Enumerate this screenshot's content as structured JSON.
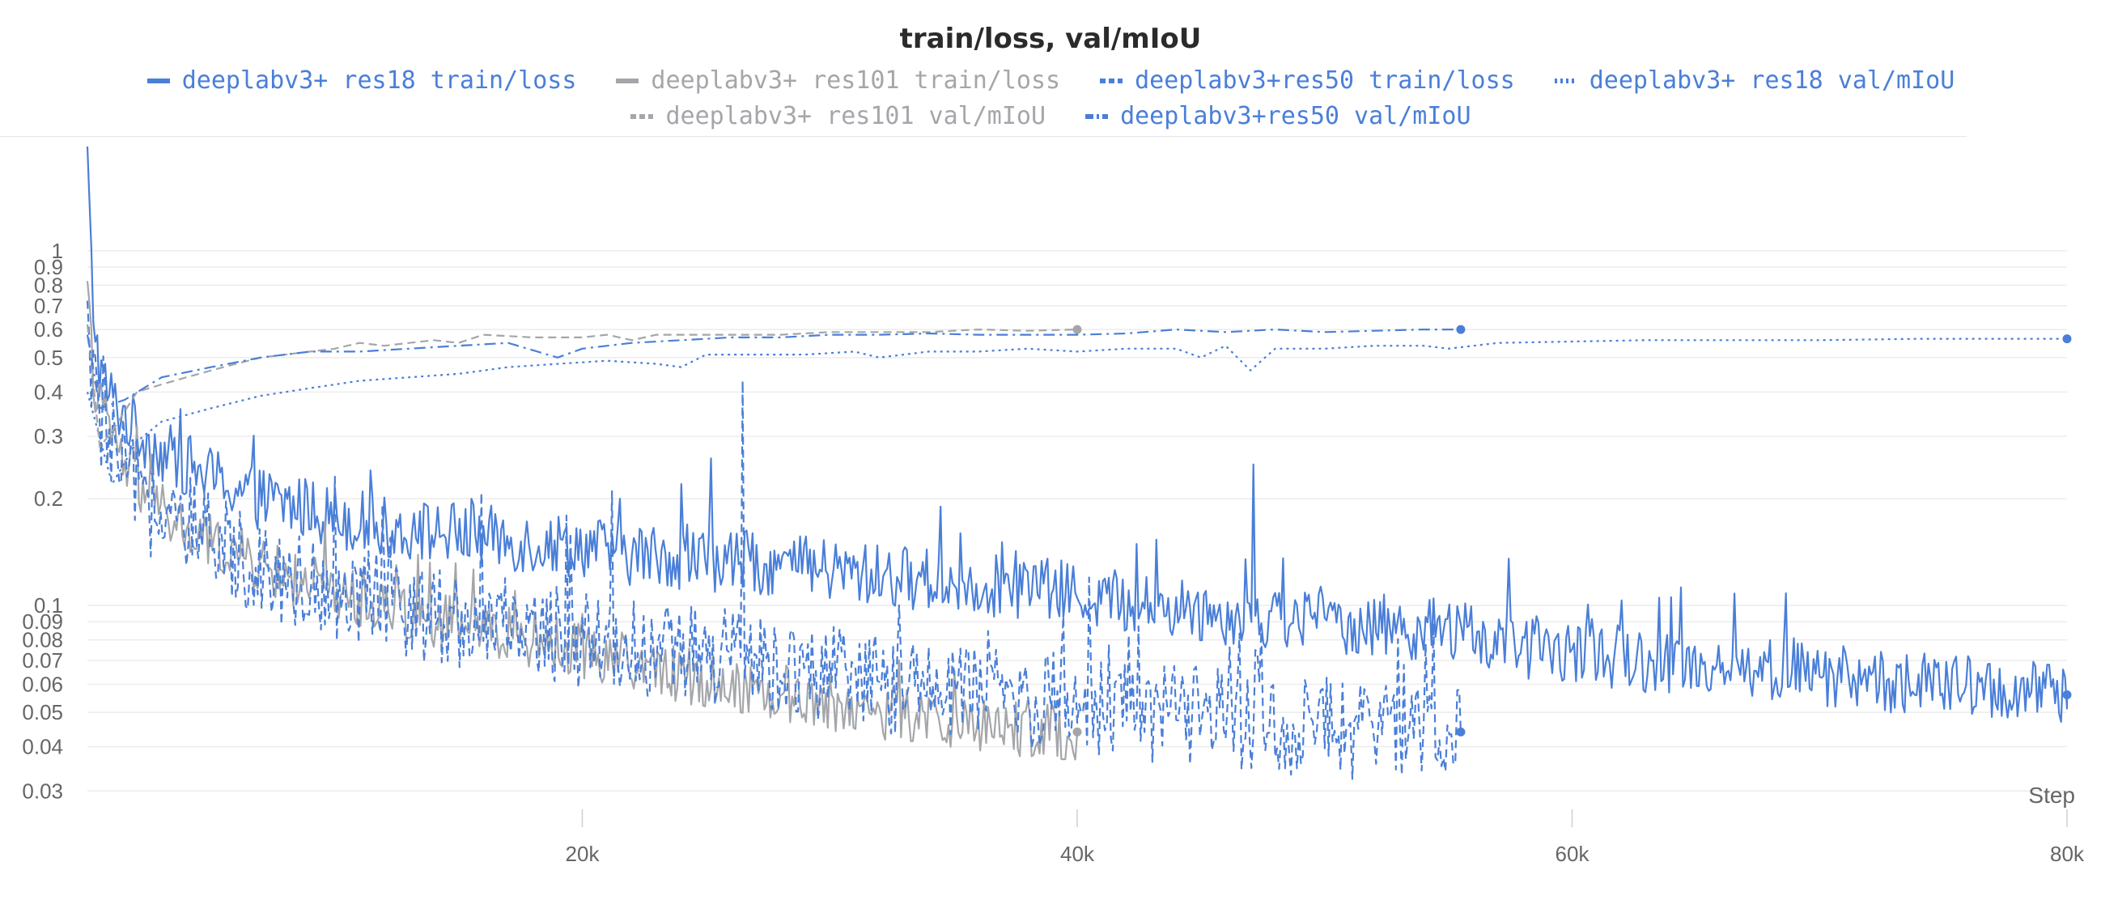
{
  "chart_data": {
    "type": "line",
    "title": "train/loss, val/mIoU",
    "xlabel": "Step",
    "ylabel": "",
    "y_scale": "log",
    "xlim": [
      0,
      80000
    ],
    "ylim": [
      0.025,
      2.0
    ],
    "grid": true,
    "legend_position": "top-center",
    "x_ticks": [
      {
        "value": 20000,
        "label": "20k"
      },
      {
        "value": 40000,
        "label": "40k"
      },
      {
        "value": 60000,
        "label": "60k"
      },
      {
        "value": 80000,
        "label": "80k"
      }
    ],
    "y_ticks": [
      {
        "value": 1,
        "label": "1"
      },
      {
        "value": 0.9,
        "label": "0.9"
      },
      {
        "value": 0.8,
        "label": "0.8"
      },
      {
        "value": 0.7,
        "label": "0.7"
      },
      {
        "value": 0.6,
        "label": "0.6"
      },
      {
        "value": 0.5,
        "label": "0.5"
      },
      {
        "value": 0.4,
        "label": "0.4"
      },
      {
        "value": 0.3,
        "label": "0.3"
      },
      {
        "value": 0.2,
        "label": "0.2"
      },
      {
        "value": 0.1,
        "label": "0.1"
      },
      {
        "value": 0.09,
        "label": "0.09"
      },
      {
        "value": 0.08,
        "label": "0.08"
      },
      {
        "value": 0.07,
        "label": "0.07"
      },
      {
        "value": 0.06,
        "label": "0.06"
      },
      {
        "value": 0.05,
        "label": "0.05"
      },
      {
        "value": 0.04,
        "label": "0.04"
      },
      {
        "value": 0.03,
        "label": "0.03"
      }
    ],
    "series": [
      {
        "name": "deeplabv3+ res18 train/loss",
        "color": "#4a7fd8",
        "dash": "solid",
        "legend_row": 1,
        "x": [
          0,
          200,
          500,
          1000,
          2000,
          3000,
          5000,
          7000,
          10000,
          12000,
          15000,
          18000,
          20000,
          22000,
          25000,
          28000,
          30000,
          33000,
          36000,
          38000,
          40000,
          43000,
          46000,
          48000,
          50000,
          52000,
          55000,
          57000,
          60000,
          63000,
          66000,
          70000,
          73000,
          76000,
          78000,
          80000
        ],
        "y": [
          1.8,
          0.75,
          0.45,
          0.38,
          0.31,
          0.27,
          0.23,
          0.2,
          0.18,
          0.165,
          0.16,
          0.15,
          0.148,
          0.14,
          0.135,
          0.13,
          0.125,
          0.12,
          0.115,
          0.112,
          0.108,
          0.1,
          0.095,
          0.092,
          0.09,
          0.088,
          0.085,
          0.078,
          0.074,
          0.07,
          0.068,
          0.064,
          0.061,
          0.059,
          0.057,
          0.056
        ],
        "noise": 0.09,
        "spikes": [
          {
            "x": 15500,
            "y": 0.2
          },
          {
            "x": 21500,
            "y": 0.2
          },
          {
            "x": 24000,
            "y": 0.22
          },
          {
            "x": 25200,
            "y": 0.26
          },
          {
            "x": 31800,
            "y": 0.32
          },
          {
            "x": 34500,
            "y": 0.19
          },
          {
            "x": 47100,
            "y": 0.25
          },
          {
            "x": 51000,
            "y": 0.18
          },
          {
            "x": 53000,
            "y": 0.15
          }
        ]
      },
      {
        "name": "deeplabv3+ res101 train/loss",
        "color": "#a4a6aa",
        "dash": "solid",
        "legend_row": 1,
        "x": [
          0,
          300,
          700,
          1500,
          2500,
          4000,
          6000,
          8000,
          10000,
          12000,
          15000,
          18000,
          20000,
          23000,
          26000,
          28000,
          30000,
          32000,
          34000,
          36000,
          38000,
          40000
        ],
        "y": [
          0.7,
          0.42,
          0.34,
          0.25,
          0.2,
          0.16,
          0.14,
          0.12,
          0.11,
          0.1,
          0.088,
          0.08,
          0.075,
          0.066,
          0.06,
          0.056,
          0.053,
          0.05,
          0.048,
          0.046,
          0.045,
          0.044
        ],
        "noise": 0.08,
        "spikes": [
          {
            "x": 12500,
            "y": 0.13
          },
          {
            "x": 17300,
            "y": 0.11
          },
          {
            "x": 32800,
            "y": 0.07
          }
        ]
      },
      {
        "name": "deeplabv3+res50 train/loss",
        "color": "#4a7fd8",
        "dash": "dashed",
        "legend_row": 1,
        "x": [
          0,
          300,
          700,
          1500,
          2500,
          4000,
          6000,
          8000,
          10000,
          12000,
          15000,
          18000,
          20000,
          22000,
          25000,
          28000,
          30000,
          32000,
          35000,
          38000,
          40000,
          43000,
          46000,
          48000,
          50000,
          52000,
          54000,
          55500
        ],
        "y": [
          0.6,
          0.38,
          0.3,
          0.24,
          0.19,
          0.16,
          0.14,
          0.12,
          0.11,
          0.1,
          0.092,
          0.085,
          0.08,
          0.076,
          0.072,
          0.068,
          0.064,
          0.06,
          0.058,
          0.055,
          0.053,
          0.05,
          0.048,
          0.046,
          0.045,
          0.044,
          0.043,
          0.044
        ],
        "noise": 0.14,
        "spikes": [
          {
            "x": 21200,
            "y": 0.21
          },
          {
            "x": 26500,
            "y": 0.43
          },
          {
            "x": 19500,
            "y": 0.16
          },
          {
            "x": 40500,
            "y": 0.12
          },
          {
            "x": 51000,
            "y": 0.028
          }
        ]
      },
      {
        "name": "deeplabv3+ res18 val/mIoU",
        "color": "#4a7fd8",
        "dash": "dotted",
        "legend_row": 1,
        "x": [
          0,
          1000,
          2000,
          3000,
          5000,
          7000,
          9000,
          11000,
          13000,
          15000,
          17000,
          19000,
          21000,
          23000,
          24000,
          25000,
          27000,
          29000,
          31000,
          32000,
          34000,
          36000,
          38000,
          40000,
          42000,
          44000,
          45000,
          46000,
          47000,
          48000,
          50000,
          52000,
          54000,
          55000,
          57000,
          60000,
          63000,
          66000,
          70000,
          74000,
          78000,
          80000
        ],
        "y": [
          0.4,
          0.22,
          0.29,
          0.33,
          0.36,
          0.39,
          0.41,
          0.43,
          0.44,
          0.45,
          0.47,
          0.48,
          0.49,
          0.48,
          0.47,
          0.51,
          0.51,
          0.51,
          0.52,
          0.5,
          0.52,
          0.52,
          0.53,
          0.52,
          0.53,
          0.53,
          0.5,
          0.54,
          0.46,
          0.53,
          0.53,
          0.54,
          0.54,
          0.53,
          0.55,
          0.555,
          0.56,
          0.56,
          0.56,
          0.565,
          0.565,
          0.565
        ],
        "noise": 0.0,
        "spikes": []
      },
      {
        "name": "deeplabv3+ res101 val/mIoU",
        "color": "#a4a6aa",
        "dash": "dashed",
        "legend_row": 2,
        "x": [
          0,
          500,
          1000,
          2000,
          3000,
          4000,
          5000,
          6000,
          7000,
          8000,
          9000,
          10000,
          11000,
          12000,
          13000,
          14000,
          15000,
          16000,
          18000,
          20000,
          21000,
          22000,
          23000,
          24000,
          26000,
          28000,
          30000,
          32000,
          34000,
          36000,
          38000,
          40000
        ],
        "y": [
          0.62,
          0.28,
          0.31,
          0.4,
          0.42,
          0.44,
          0.46,
          0.48,
          0.5,
          0.51,
          0.52,
          0.53,
          0.55,
          0.54,
          0.55,
          0.56,
          0.55,
          0.58,
          0.57,
          0.57,
          0.58,
          0.56,
          0.58,
          0.58,
          0.58,
          0.58,
          0.59,
          0.59,
          0.59,
          0.6,
          0.595,
          0.6
        ],
        "noise": 0.0,
        "spikes": []
      },
      {
        "name": "deeplabv3+res50 val/mIoU",
        "color": "#4a7fd8",
        "dash": "dashdot",
        "legend_row": 2,
        "x": [
          0,
          500,
          1500,
          3000,
          5000,
          7000,
          9000,
          11000,
          13000,
          15000,
          17000,
          19000,
          20000,
          22000,
          24000,
          26000,
          28000,
          30000,
          32000,
          34000,
          36000,
          38000,
          40000,
          42000,
          44000,
          46000,
          48000,
          50000,
          52000,
          54000,
          55500
        ],
        "y": [
          0.58,
          0.36,
          0.38,
          0.44,
          0.47,
          0.5,
          0.52,
          0.52,
          0.53,
          0.54,
          0.55,
          0.5,
          0.53,
          0.55,
          0.56,
          0.57,
          0.57,
          0.58,
          0.58,
          0.585,
          0.58,
          0.58,
          0.58,
          0.585,
          0.6,
          0.59,
          0.6,
          0.59,
          0.595,
          0.6,
          0.6
        ],
        "noise": 0.0,
        "spikes": []
      }
    ]
  }
}
